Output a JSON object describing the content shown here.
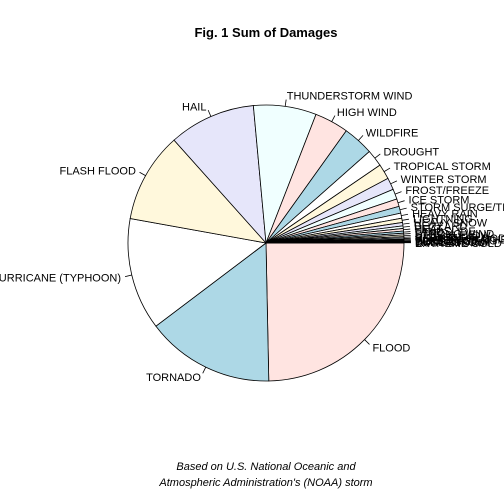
{
  "chart_data": {
    "type": "pie",
    "title": "Fig. 1 Sum of Damages",
    "caption_lines": [
      "Based on U.S. National Oceanic and",
      "Atmospheric Administration's (NOAA) storm"
    ],
    "slices": [
      {
        "label": "FLOOD",
        "value": 24.8,
        "color": "#ffe4e1"
      },
      {
        "label": "TORNADO",
        "value": 15.1,
        "color": "#add8e6"
      },
      {
        "label": "HURRICANE (TYPHOON)",
        "value": 13.2,
        "color": "#ffffff"
      },
      {
        "label": "FLASH FLOOD",
        "value": 10.6,
        "color": "#fff8dc"
      },
      {
        "label": "HAIL",
        "value": 10.2,
        "color": "#e6e6fa"
      },
      {
        "label": "THUNDERSTORM WIND",
        "value": 7.4,
        "color": "#f0ffff"
      },
      {
        "label": "HIGH WIND",
        "value": 4.0,
        "color": "#ffe4e1"
      },
      {
        "label": "WILDFIRE",
        "value": 3.6,
        "color": "#add8e6"
      },
      {
        "label": "DROUGHT",
        "value": 2.0,
        "color": "#ffffff"
      },
      {
        "label": "TROPICAL STORM",
        "value": 1.8,
        "color": "#fff8dc"
      },
      {
        "label": "WINTER STORM",
        "value": 1.4,
        "color": "#e6e6fa"
      },
      {
        "label": "FROST/FREEZE",
        "value": 1.2,
        "color": "#f0ffff"
      },
      {
        "label": "ICE STORM",
        "value": 0.9,
        "color": "#ffe4e1"
      },
      {
        "label": "STORM SURGE/TIDE",
        "value": 0.8,
        "color": "#add8e6"
      },
      {
        "label": "HEAVY RAIN",
        "value": 0.6,
        "color": "#ffffff"
      },
      {
        "label": "LIGHTNING",
        "value": 0.5,
        "color": "#fff8dc"
      },
      {
        "label": "HEAVY SNOW",
        "value": 0.4,
        "color": "#e6e6fa"
      },
      {
        "label": "BLIZZARD",
        "value": 0.3,
        "color": "#f0ffff"
      },
      {
        "label": "HEAT",
        "value": 0.3,
        "color": "#ffe4e1"
      },
      {
        "label": "LANDSLIDE",
        "value": 0.25,
        "color": "#add8e6"
      },
      {
        "label": "STRONG WIND",
        "value": 0.2,
        "color": "#ffffff"
      },
      {
        "label": "DEBRIS FLOW",
        "value": 0.2,
        "color": "#fff8dc"
      },
      {
        "label": "HIGH SURF",
        "value": 0.15,
        "color": "#e6e6fa"
      },
      {
        "label": "COASTAL FLOOD",
        "value": 0.15,
        "color": "#f0ffff"
      },
      {
        "label": "WINTER WEATHER",
        "value": 0.1,
        "color": "#ffe4e1"
      },
      {
        "label": "FREEZING FOG",
        "value": 0.1,
        "color": "#add8e6"
      },
      {
        "label": "DENSE FOG",
        "value": 0.08,
        "color": "#ffffff"
      },
      {
        "label": "WATERSPOUT",
        "value": 0.06,
        "color": "#fff8dc"
      },
      {
        "label": "DUST STORM",
        "value": 0.05,
        "color": "#e6e6fa"
      },
      {
        "label": "EXTREME COLD",
        "value": 0.05,
        "color": "#f0ffff"
      }
    ]
  }
}
